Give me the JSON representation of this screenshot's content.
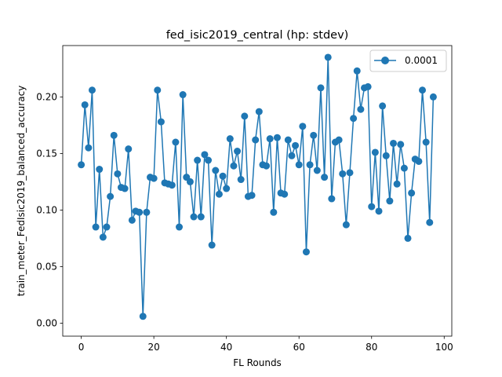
{
  "chart_data": {
    "type": "line",
    "title": "fed_isic2019_central (hp: stdev)",
    "xlabel": "FL Rounds",
    "ylabel": "train_meter_FedIsic2019_balanced_accuracy",
    "xlim": [
      -5.1,
      102.1
    ],
    "ylim": [
      -0.0115,
      0.2454
    ],
    "xticks": [
      0,
      20,
      40,
      60,
      80,
      100
    ],
    "yticks": [
      0.0,
      0.05,
      0.1,
      0.15,
      0.2
    ],
    "xtick_labels": [
      "0",
      "20",
      "40",
      "60",
      "80",
      "100"
    ],
    "ytick_labels": [
      "0.00",
      "0.05",
      "0.10",
      "0.15",
      "0.20"
    ],
    "grid": false,
    "legend_position": "top-right",
    "series": [
      {
        "name": "0.0001",
        "color": "#1f77b4",
        "marker": "circle",
        "x": [
          0,
          1,
          2,
          3,
          4,
          5,
          6,
          7,
          8,
          9,
          10,
          11,
          12,
          13,
          14,
          15,
          16,
          17,
          18,
          19,
          20,
          21,
          22,
          23,
          24,
          25,
          26,
          27,
          28,
          29,
          30,
          31,
          32,
          33,
          34,
          35,
          36,
          37,
          38,
          39,
          40,
          41,
          42,
          43,
          44,
          45,
          46,
          47,
          48,
          49,
          50,
          51,
          52,
          53,
          54,
          55,
          56,
          57,
          58,
          59,
          60,
          61,
          62,
          63,
          64,
          65,
          66,
          67,
          68,
          69,
          70,
          71,
          72,
          73,
          74,
          75,
          76,
          77,
          78,
          79,
          80,
          81,
          82,
          83,
          84,
          85,
          86,
          87,
          88,
          89,
          90,
          91,
          92,
          93,
          94,
          95,
          96,
          97
        ],
        "values": [
          0.14,
          0.193,
          0.155,
          0.206,
          0.085,
          0.136,
          0.076,
          0.085,
          0.112,
          0.166,
          0.132,
          0.12,
          0.119,
          0.154,
          0.091,
          0.099,
          0.098,
          0.006,
          0.098,
          0.129,
          0.128,
          0.206,
          0.178,
          0.124,
          0.123,
          0.122,
          0.16,
          0.085,
          0.202,
          0.129,
          0.125,
          0.094,
          0.144,
          0.094,
          0.149,
          0.144,
          0.069,
          0.135,
          0.114,
          0.13,
          0.119,
          0.163,
          0.139,
          0.152,
          0.127,
          0.183,
          0.112,
          0.113,
          0.162,
          0.187,
          0.14,
          0.139,
          0.163,
          0.098,
          0.164,
          0.115,
          0.114,
          0.162,
          0.148,
          0.157,
          0.14,
          0.174,
          0.063,
          0.14,
          0.166,
          0.135,
          0.208,
          0.129,
          0.235,
          0.11,
          0.16,
          0.162,
          0.132,
          0.087,
          0.133,
          0.181,
          0.223,
          0.189,
          0.208,
          0.209,
          0.103,
          0.151,
          0.099,
          0.192,
          0.148,
          0.108,
          0.159,
          0.123,
          0.158,
          0.137,
          0.075,
          0.115,
          0.145,
          0.143,
          0.206,
          0.16,
          0.089,
          0.2
        ]
      }
    ]
  }
}
